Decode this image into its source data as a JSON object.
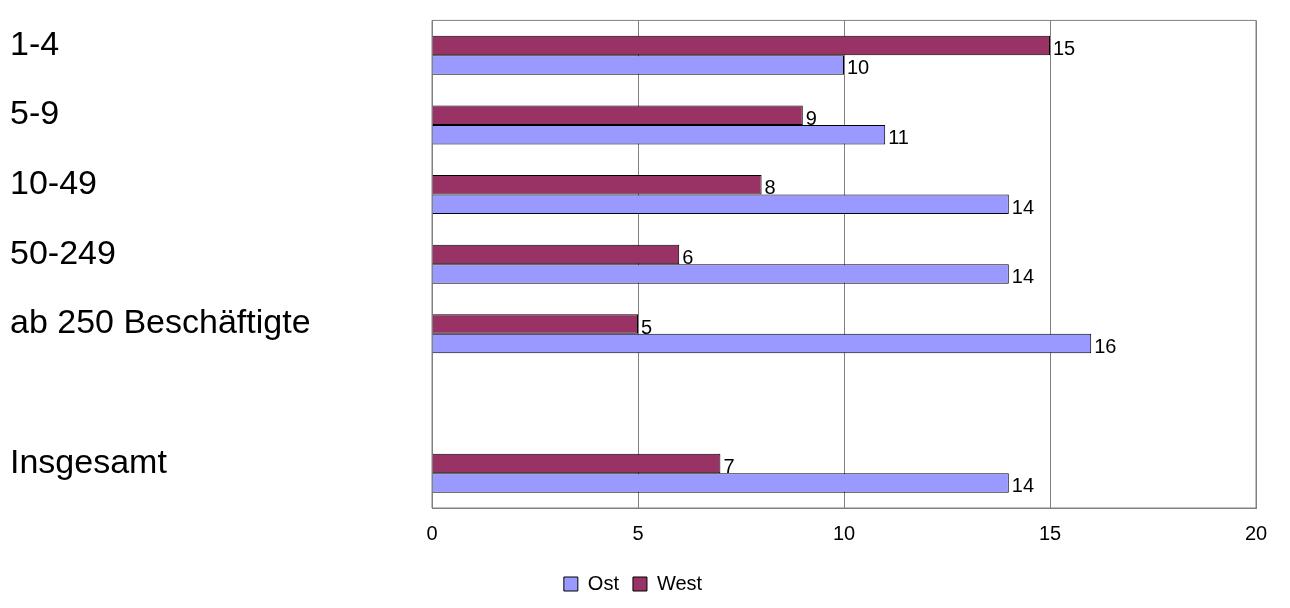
{
  "chart_data": {
    "type": "bar",
    "orientation": "horizontal",
    "categories": [
      "1-4",
      "5-9",
      "10-49",
      "50-249",
      "ab 250 Beschäftigte",
      null,
      "Insgesamt"
    ],
    "series": [
      {
        "name": "Ost",
        "color": "#9999ff",
        "values": [
          10,
          11,
          14,
          14,
          16,
          null,
          14
        ]
      },
      {
        "name": "West",
        "color": "#993366",
        "values": [
          15,
          9,
          8,
          6,
          5,
          null,
          7
        ]
      }
    ],
    "xlim": [
      0,
      20
    ],
    "xticks": [
      0,
      5,
      10,
      15,
      20
    ],
    "grid": "x",
    "legend": "bottom",
    "data_labels": true
  }
}
